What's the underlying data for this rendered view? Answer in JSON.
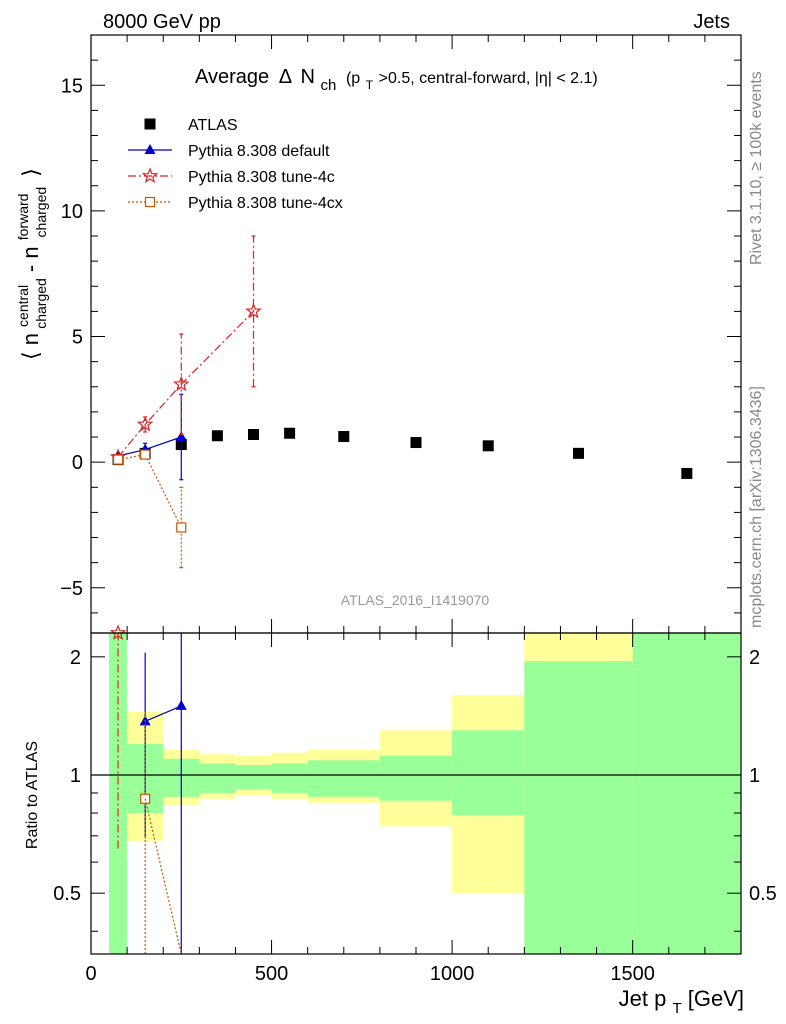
{
  "header": {
    "left": "8000 GeV pp",
    "right": "Jets"
  },
  "side": {
    "rivet": "Rivet 3.1.10, ≥ 100k events",
    "mcplots": "mcplots.cern.ch [arXiv:1306.3436]"
  },
  "watermark": "ATLAS_2016_I1419070",
  "colors": {
    "atlas": "#000000",
    "default": "#0000cc",
    "tune4c": "#dd2222",
    "tune4cx": "#cc5500",
    "band_inner": "#99ff99",
    "band_outer": "#ffff99"
  },
  "chart_data": [
    {
      "type": "scatter",
      "title": "Average Δ N_ch (p_T>0.5, central-forward, |η| < 2.1)",
      "title_parts": {
        "lead": "Average",
        "delta": "Δ",
        "n": "N",
        "ch": "ch",
        "paren_open": "(p",
        "t": "T",
        "paren_rest": ">0.5, central-forward, |η| < 2.1)"
      },
      "ylabel": "⟨ n^central_charged - n^forward_charged ⟩",
      "ylabel_parts": {
        "open": "⟨ n",
        "central": "central",
        "charged1": "charged",
        "dash": " - n",
        "forward": "forward",
        "charged2": "charged",
        "close": "⟩"
      },
      "xlim": [
        0,
        1800
      ],
      "ylim": [
        -6.8,
        17
      ],
      "y_ticks": [
        -5,
        0,
        5,
        10,
        15
      ],
      "legend_position": "top-left",
      "series": [
        {
          "name": "ATLAS",
          "marker": "square",
          "x": [
            75,
            150,
            250,
            350,
            450,
            550,
            700,
            900,
            1100,
            1350,
            1650
          ],
          "y": [
            0.1,
            0.35,
            0.7,
            1.05,
            1.1,
            1.15,
            1.02,
            0.78,
            0.65,
            0.35,
            -0.45
          ]
        },
        {
          "name": "Pythia 8.308 default",
          "marker": "triangle",
          "line": "solid",
          "x": [
            75,
            150,
            250
          ],
          "y": [
            0.25,
            0.5,
            1.0
          ],
          "yerr": [
            0.12,
            0.25,
            1.7
          ]
        },
        {
          "name": "Pythia 8.308 tune-4c",
          "marker": "star",
          "line": "dashdot",
          "x": [
            75,
            150,
            250,
            450
          ],
          "y": [
            0.2,
            1.5,
            3.1,
            6.0
          ],
          "yerr": [
            0.1,
            0.3,
            2.0,
            3.0
          ]
        },
        {
          "name": "Pythia 8.308 tune-4cx",
          "marker": "open-square",
          "line": "dotted",
          "x": [
            75,
            150,
            250
          ],
          "y": [
            0.1,
            0.3,
            -2.6
          ],
          "yerr": [
            0.08,
            0.15,
            1.6
          ]
        }
      ]
    },
    {
      "type": "ratio",
      "ylabel": "Ratio to ATLAS",
      "xlabel": "Jet p_T [GeV]",
      "xlabel_parts": {
        "a": "Jet p",
        "t": "T",
        "b": " [GeV]"
      },
      "xlim": [
        0,
        1800
      ],
      "ylim": [
        0.35,
        2.3
      ],
      "y_ticks": [
        0.5,
        1,
        2
      ],
      "x_ticks": [
        0,
        500,
        1000,
        1500
      ],
      "bins": [
        {
          "x0": 50,
          "x1": 100,
          "inner": [
            0.35,
            2.3
          ],
          "outer": [
            0.35,
            2.3
          ]
        },
        {
          "x0": 100,
          "x1": 200,
          "inner": [
            0.8,
            1.2
          ],
          "outer": [
            0.68,
            1.45
          ]
        },
        {
          "x0": 200,
          "x1": 300,
          "inner": [
            0.88,
            1.1
          ],
          "outer": [
            0.84,
            1.16
          ]
        },
        {
          "x0": 300,
          "x1": 400,
          "inner": [
            0.9,
            1.07
          ],
          "outer": [
            0.87,
            1.13
          ]
        },
        {
          "x0": 400,
          "x1": 500,
          "inner": [
            0.92,
            1.06
          ],
          "outer": [
            0.89,
            1.12
          ]
        },
        {
          "x0": 500,
          "x1": 600,
          "inner": [
            0.9,
            1.07
          ],
          "outer": [
            0.87,
            1.14
          ]
        },
        {
          "x0": 600,
          "x1": 800,
          "inner": [
            0.88,
            1.09
          ],
          "outer": [
            0.85,
            1.16
          ]
        },
        {
          "x0": 800,
          "x1": 1000,
          "inner": [
            0.86,
            1.12
          ],
          "outer": [
            0.74,
            1.3
          ]
        },
        {
          "x0": 1000,
          "x1": 1200,
          "inner": [
            0.79,
            1.3
          ],
          "outer": [
            0.5,
            1.6
          ]
        },
        {
          "x0": 1200,
          "x1": 1500,
          "inner": [
            0.35,
            1.95
          ],
          "outer": [
            0.35,
            2.3
          ]
        },
        {
          "x0": 1500,
          "x1": 1800,
          "inner": [
            0.35,
            2.3
          ],
          "outer": [
            0.35,
            2.3
          ]
        }
      ],
      "series": [
        {
          "name": "Pythia 8.308 default",
          "x": [
            150,
            250
          ],
          "y": [
            1.37,
            1.5
          ],
          "yerr": [
            0.68,
            2.2
          ]
        },
        {
          "name": "Pythia 8.308 tune-4c",
          "x": [
            75
          ],
          "y": [
            2.3
          ],
          "yerr": [
            1.65
          ]
        },
        {
          "name": "Pythia 8.308 tune-4cx",
          "x": [
            150
          ],
          "y": [
            0.87
          ],
          "yerr": [
            0.6
          ]
        }
      ]
    }
  ]
}
